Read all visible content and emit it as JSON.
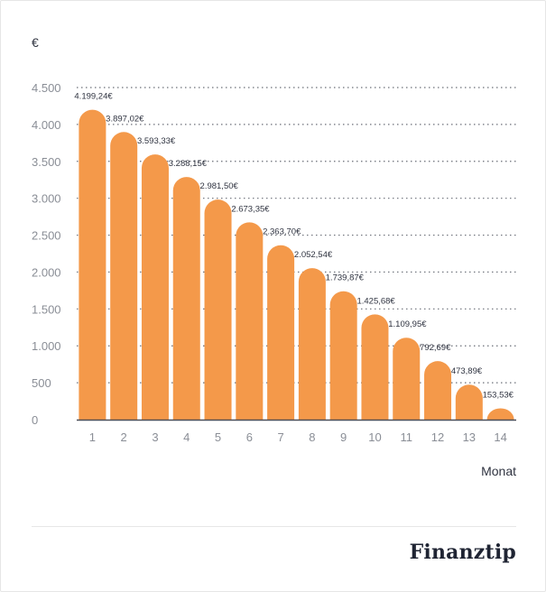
{
  "colors": {
    "bar": "#F4994A",
    "grid": "#6b6f78",
    "axis": "#4a4e57",
    "tick_text": "#8a8e96",
    "label_text": "#2f3340"
  },
  "brand": {
    "logo_text": "Finanztip"
  },
  "chart_data": {
    "type": "bar",
    "title": "",
    "ylabel": "€",
    "xlabel": "Monat",
    "ylim": [
      0,
      4500
    ],
    "yticks": [
      0,
      500,
      1000,
      1500,
      2000,
      2500,
      3000,
      3500,
      4000,
      4500
    ],
    "ytick_labels": [
      "0",
      "500",
      "1.000",
      "1.500",
      "2.000",
      "2.500",
      "3.000",
      "3.500",
      "4.000",
      "4.500"
    ],
    "grid": true,
    "categories": [
      "1",
      "2",
      "3",
      "4",
      "5",
      "6",
      "7",
      "8",
      "9",
      "10",
      "11",
      "12",
      "13",
      "14"
    ],
    "values": [
      4199.24,
      3897.02,
      3593.33,
      3288.15,
      2981.5,
      2673.35,
      2363.7,
      2052.54,
      1739.87,
      1425.68,
      1109.95,
      792.69,
      473.89,
      153.53
    ],
    "value_labels": [
      "4.199,24€",
      "3.897,02€",
      "3.593,33€",
      "3.288,15€",
      "2.981,50€",
      "2.673,35€",
      "2.363,70€",
      "2.052,54€",
      "1.739,87€",
      "1.425,68€",
      "1.109,95€",
      "792,69€",
      "473,89€",
      "153,53€"
    ]
  }
}
